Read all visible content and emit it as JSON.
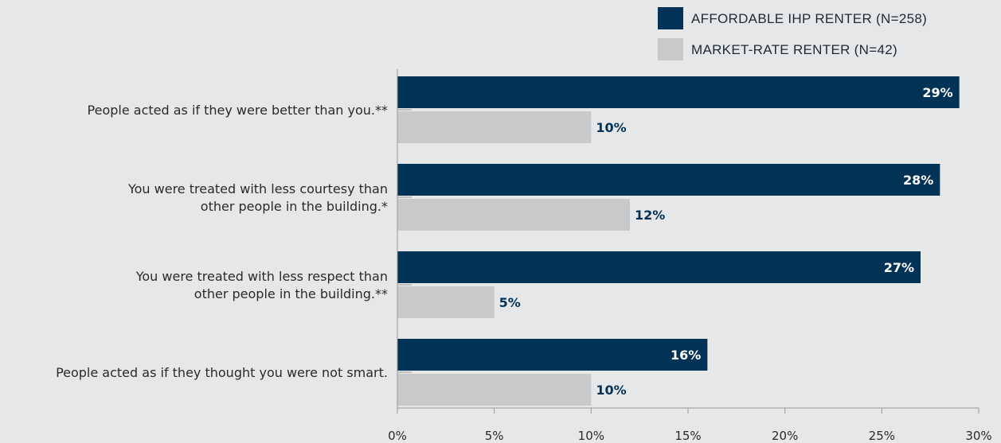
{
  "colors": {
    "background": "#e6e7e8",
    "primary": "#023357",
    "secondary": "#c8c9cb",
    "axis": "#9a9a9a",
    "label_on_dark": "#ffffff",
    "label_on_light": "#023357"
  },
  "chart_data": {
    "type": "bar",
    "orientation": "horizontal",
    "title": "",
    "xlabel": "",
    "ylabel": "",
    "xlim": [
      0,
      30
    ],
    "x_ticks": [
      0,
      5,
      10,
      15,
      20,
      25,
      30
    ],
    "x_tick_labels": [
      "0%",
      "5%",
      "10%",
      "15%",
      "20%",
      "25%",
      "30%"
    ],
    "grid": false,
    "legend_position": "top-right",
    "categories": [
      [
        "People acted as if they were better than you.**"
      ],
      [
        "You were treated with less courtesy than",
        "other people in the building.*"
      ],
      [
        "You were treated with less respect than",
        "other people in the building.**"
      ],
      [
        "People acted as if they thought you were not smart."
      ]
    ],
    "series": [
      {
        "name": "AFFORDABLE IHP RENTER (N=258)",
        "color": "#023357",
        "values": [
          29,
          28,
          27,
          16
        ],
        "labels": [
          "29%",
          "28%",
          "27%",
          "16%"
        ]
      },
      {
        "name": "MARKET-RATE RENTER (N=42)",
        "color": "#c8c9cb",
        "values": [
          10,
          12,
          5,
          10
        ],
        "labels": [
          "10%",
          "12%",
          "5%",
          "10%"
        ]
      }
    ]
  }
}
